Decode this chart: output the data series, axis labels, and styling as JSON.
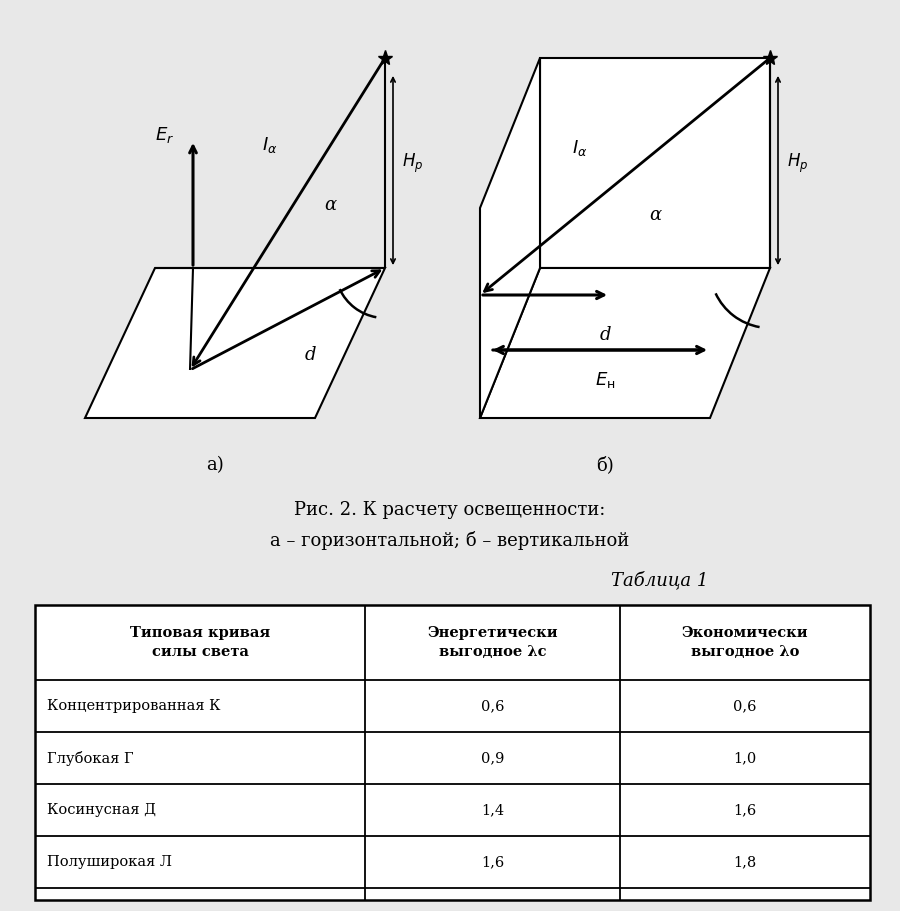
{
  "caption_line1": "Рис. 2. К расчету освещенности:",
  "caption_line2": "а – горизонтальной; б – вертикальной",
  "label_a": "а)",
  "label_b": "б)",
  "table_title": "Таблица 1",
  "col_headers": [
    "Типовая кривая\nсилы света",
    "Энергетически\nвыгодное λc",
    "Экономически\nвыгодное λo"
  ],
  "rows": [
    [
      "Концентрированная К",
      "0,6",
      "0,6"
    ],
    [
      "Глубокая Г",
      "0,9",
      "1,0"
    ],
    [
      "Косинусная Д",
      "1,4",
      "1,6"
    ],
    [
      "Полуширокая Л",
      "1,6",
      "1,8"
    ]
  ],
  "bg_color": "#f0f0f0",
  "fig_bg": "#e8e8e8"
}
